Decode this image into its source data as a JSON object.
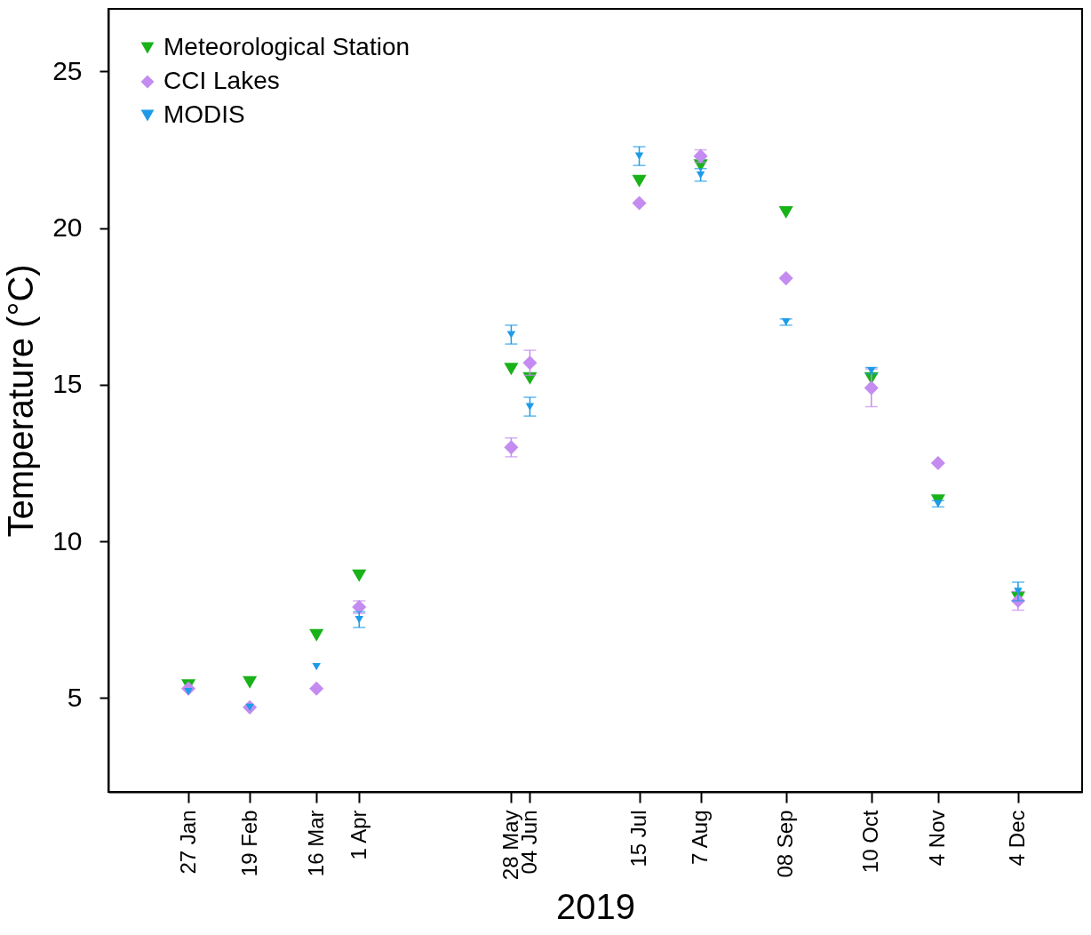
{
  "chart_data": {
    "type": "scatter",
    "xlabel": "2019",
    "ylabel": "Temperature (°C)",
    "x": [
      "2019-01-27",
      "2019-02-19",
      "2019-03-16",
      "2019-04-01",
      "2019-05-28",
      "2019-06-04",
      "2019-07-15",
      "2019-08-07",
      "2019-09-08",
      "2019-10-10",
      "2019-11-04",
      "2019-12-04"
    ],
    "xlim": [
      "2018-12-28",
      "2019-12-28"
    ],
    "xticks": [
      {
        "value": "2019-01-27",
        "label": "27 Jan"
      },
      {
        "value": "2019-02-19",
        "label": "19 Feb"
      },
      {
        "value": "2019-03-16",
        "label": "16 Mar"
      },
      {
        "value": "2019-04-01",
        "label": "1 Apr"
      },
      {
        "value": "2019-05-28",
        "label": "28 May"
      },
      {
        "value": "2019-06-04",
        "label": "04 Jun"
      },
      {
        "value": "2019-07-15",
        "label": "15 Jul"
      },
      {
        "value": "2019-08-07",
        "label": "7 Aug"
      },
      {
        "value": "2019-09-08",
        "label": "08 Sep"
      },
      {
        "value": "2019-10-10",
        "label": "10 Oct"
      },
      {
        "value": "2019-11-04",
        "label": "4 Nov"
      },
      {
        "value": "2019-12-04",
        "label": "4 Dec"
      }
    ],
    "ylim": [
      2,
      27
    ],
    "yticks": [
      5,
      10,
      15,
      20,
      25
    ],
    "grid": false,
    "legend": "top left",
    "series": [
      {
        "name": "Meteorological Station",
        "color": "#19b219",
        "marker": "triangle",
        "values": [
          5.4,
          5.5,
          7.0,
          8.9,
          15.5,
          15.2,
          21.5,
          22.0,
          20.5,
          15.2,
          11.3,
          8.2
        ]
      },
      {
        "name": "CCI Lakes",
        "color": "#c48cf0",
        "marker": "diamond",
        "values": [
          5.3,
          4.7,
          5.3,
          7.9,
          13.0,
          15.7,
          20.8,
          22.3,
          18.4,
          14.9,
          12.5,
          8.1
        ],
        "errors": [
          null,
          null,
          null,
          0.2,
          0.3,
          0.4,
          null,
          0.2,
          null,
          0.6,
          null,
          0.3
        ]
      },
      {
        "name": "MODIS",
        "color": "#1e9be8",
        "marker": "triangle",
        "values": [
          5.2,
          4.7,
          6.0,
          7.5,
          16.6,
          14.3,
          22.3,
          21.7,
          17.0,
          15.45,
          11.2,
          8.4
        ],
        "errors": [
          null,
          null,
          null,
          0.25,
          0.3,
          0.3,
          0.3,
          0.2,
          0.1,
          0.1,
          0.1,
          0.3
        ]
      }
    ]
  }
}
